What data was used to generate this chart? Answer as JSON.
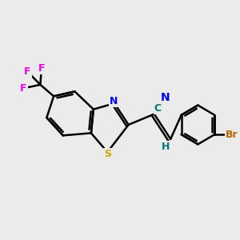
{
  "background_color": "#ebebeb",
  "bond_color": "#000000",
  "bond_width": 1.8,
  "atom_colors": {
    "N": "#0000ee",
    "S": "#ccaa00",
    "F": "#ee00ee",
    "Br": "#bb6600",
    "C_nitrile": "#007777",
    "H_label": "#007777",
    "N_nitrile": "#0000ee"
  },
  "figsize": [
    3.0,
    3.0
  ],
  "dpi": 100
}
